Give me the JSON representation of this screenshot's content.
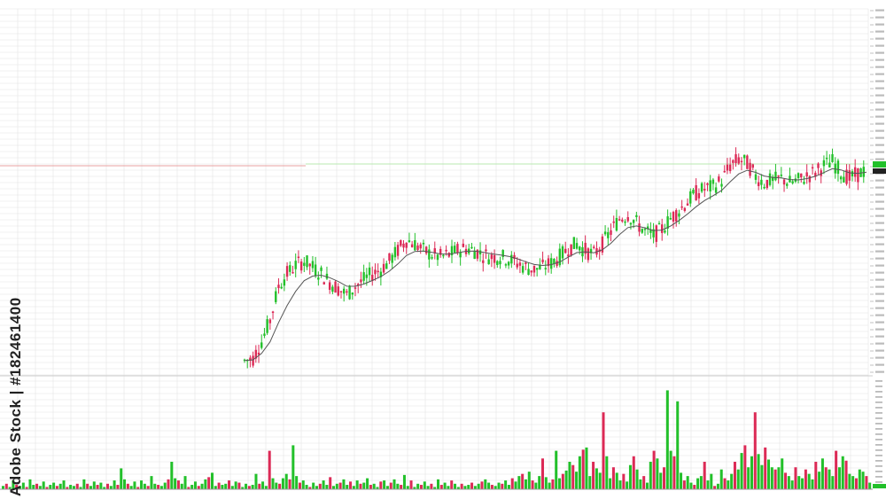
{
  "watermark": {
    "text": "Adobe Stock | #182461400"
  },
  "colors": {
    "up": "#22c02a",
    "down": "#dc2a56",
    "ma": "#555555",
    "grid": "#e4e4e4",
    "level_line": "#e8a0a0",
    "level_line2": "#b8e8b0"
  },
  "chart_data": [
    {
      "type": "candlestick",
      "title": "",
      "grid": true,
      "overlay": "moving average line",
      "ylim": [
        0,
        100
      ],
      "ohlc_trend": [
        [
          0,
          3
        ],
        [
          1,
          4
        ],
        [
          2,
          12
        ],
        [
          3,
          22
        ],
        [
          4,
          38
        ],
        [
          5,
          44
        ],
        [
          6,
          48
        ],
        [
          7,
          50
        ],
        [
          8,
          47
        ],
        [
          9,
          44
        ],
        [
          10,
          40
        ],
        [
          11,
          37
        ],
        [
          12,
          34
        ],
        [
          13,
          38
        ],
        [
          14,
          41
        ],
        [
          15,
          44
        ],
        [
          16,
          46
        ],
        [
          17,
          50
        ],
        [
          18,
          55
        ],
        [
          19,
          60
        ],
        [
          20,
          58
        ],
        [
          21,
          55
        ],
        [
          22,
          53
        ],
        [
          23,
          52
        ],
        [
          24,
          53
        ],
        [
          25,
          55
        ],
        [
          26,
          56
        ],
        [
          27,
          55
        ],
        [
          28,
          53
        ],
        [
          29,
          52
        ],
        [
          30,
          52
        ],
        [
          31,
          51
        ],
        [
          32,
          49
        ],
        [
          33,
          47
        ],
        [
          34,
          46
        ],
        [
          35,
          47
        ],
        [
          36,
          49
        ],
        [
          37,
          52
        ],
        [
          38,
          56
        ],
        [
          39,
          58
        ],
        [
          40,
          55
        ],
        [
          41,
          53
        ],
        [
          42,
          58
        ],
        [
          43,
          64
        ],
        [
          44,
          70
        ],
        [
          45,
          72
        ],
        [
          46,
          68
        ],
        [
          47,
          64
        ],
        [
          48,
          62
        ],
        [
          49,
          65
        ],
        [
          50,
          70
        ],
        [
          51,
          74
        ],
        [
          52,
          78
        ],
        [
          53,
          82
        ],
        [
          54,
          84
        ],
        [
          55,
          85
        ],
        [
          56,
          88
        ],
        [
          57,
          95
        ],
        [
          58,
          98
        ],
        [
          59,
          96
        ],
        [
          60,
          90
        ],
        [
          61,
          87
        ],
        [
          62,
          88
        ],
        [
          63,
          89
        ],
        [
          64,
          87
        ],
        [
          65,
          88
        ],
        [
          66,
          90
        ],
        [
          67,
          92
        ],
        [
          68,
          95
        ],
        [
          69,
          97
        ],
        [
          70,
          92
        ],
        [
          71,
          89
        ],
        [
          72,
          91
        ],
        [
          73,
          93
        ]
      ]
    },
    {
      "type": "bar",
      "title": "",
      "panel": "volume",
      "values": [
        3,
        5,
        2,
        8,
        4,
        3,
        6,
        2,
        9,
        4,
        5,
        3,
        7,
        2,
        4,
        6,
        3,
        5,
        8,
        2,
        4,
        3,
        5,
        2,
        9,
        5,
        3,
        7,
        4,
        6,
        2,
        5,
        3,
        8,
        4,
        19,
        9,
        5,
        3,
        7,
        2,
        8,
        5,
        3,
        12,
        5,
        4,
        3,
        6,
        9,
        25,
        10,
        8,
        5,
        12,
        2,
        4,
        7,
        3,
        5,
        9,
        11,
        15,
        3,
        6,
        4,
        5,
        8,
        3,
        7,
        6,
        2,
        5,
        3,
        4,
        14,
        5,
        7,
        3,
        35,
        10,
        6,
        5,
        10,
        14,
        9,
        40,
        12,
        6,
        8,
        4,
        2,
        6,
        3,
        5,
        8,
        4,
        11,
        3,
        5,
        6,
        9,
        4,
        7,
        3,
        8,
        5,
        6,
        10,
        4,
        5,
        2,
        7,
        8,
        3,
        6,
        9,
        5,
        4,
        13,
        3,
        8,
        2,
        5,
        4,
        7,
        3,
        5,
        2,
        9,
        4,
        6,
        3,
        8,
        5,
        2,
        5,
        3,
        4,
        6,
        3,
        5,
        7,
        9,
        6,
        4,
        3,
        6,
        5,
        8,
        4,
        10,
        7,
        12,
        14,
        9,
        16,
        8,
        6,
        12,
        28,
        11,
        6,
        9,
        35,
        10,
        14,
        17,
        25,
        22,
        16,
        30,
        36,
        38,
        12,
        25,
        19,
        15,
        70,
        30,
        10,
        20,
        15,
        8,
        14,
        7,
        22,
        30,
        18,
        9,
        12,
        6,
        25,
        35,
        28,
        15,
        20,
        90,
        35,
        30,
        80,
        15,
        8,
        12,
        6,
        4,
        10,
        12,
        25,
        8,
        14,
        3,
        5,
        18,
        10,
        8,
        14,
        25,
        18,
        33,
        40,
        20,
        30,
        70,
        32,
        22,
        38,
        27,
        20,
        18,
        20,
        28,
        15,
        12,
        8,
        20,
        12,
        10,
        18,
        14,
        9,
        25,
        16,
        28,
        20,
        18,
        12,
        35,
        20,
        30,
        26,
        14,
        12,
        10,
        18,
        16,
        12,
        6
      ],
      "up_down": "alternating green (up) and crimson (down) per bar"
    }
  ],
  "y_axis": {
    "labels_note": "tiny illegible price labels along right edge"
  }
}
